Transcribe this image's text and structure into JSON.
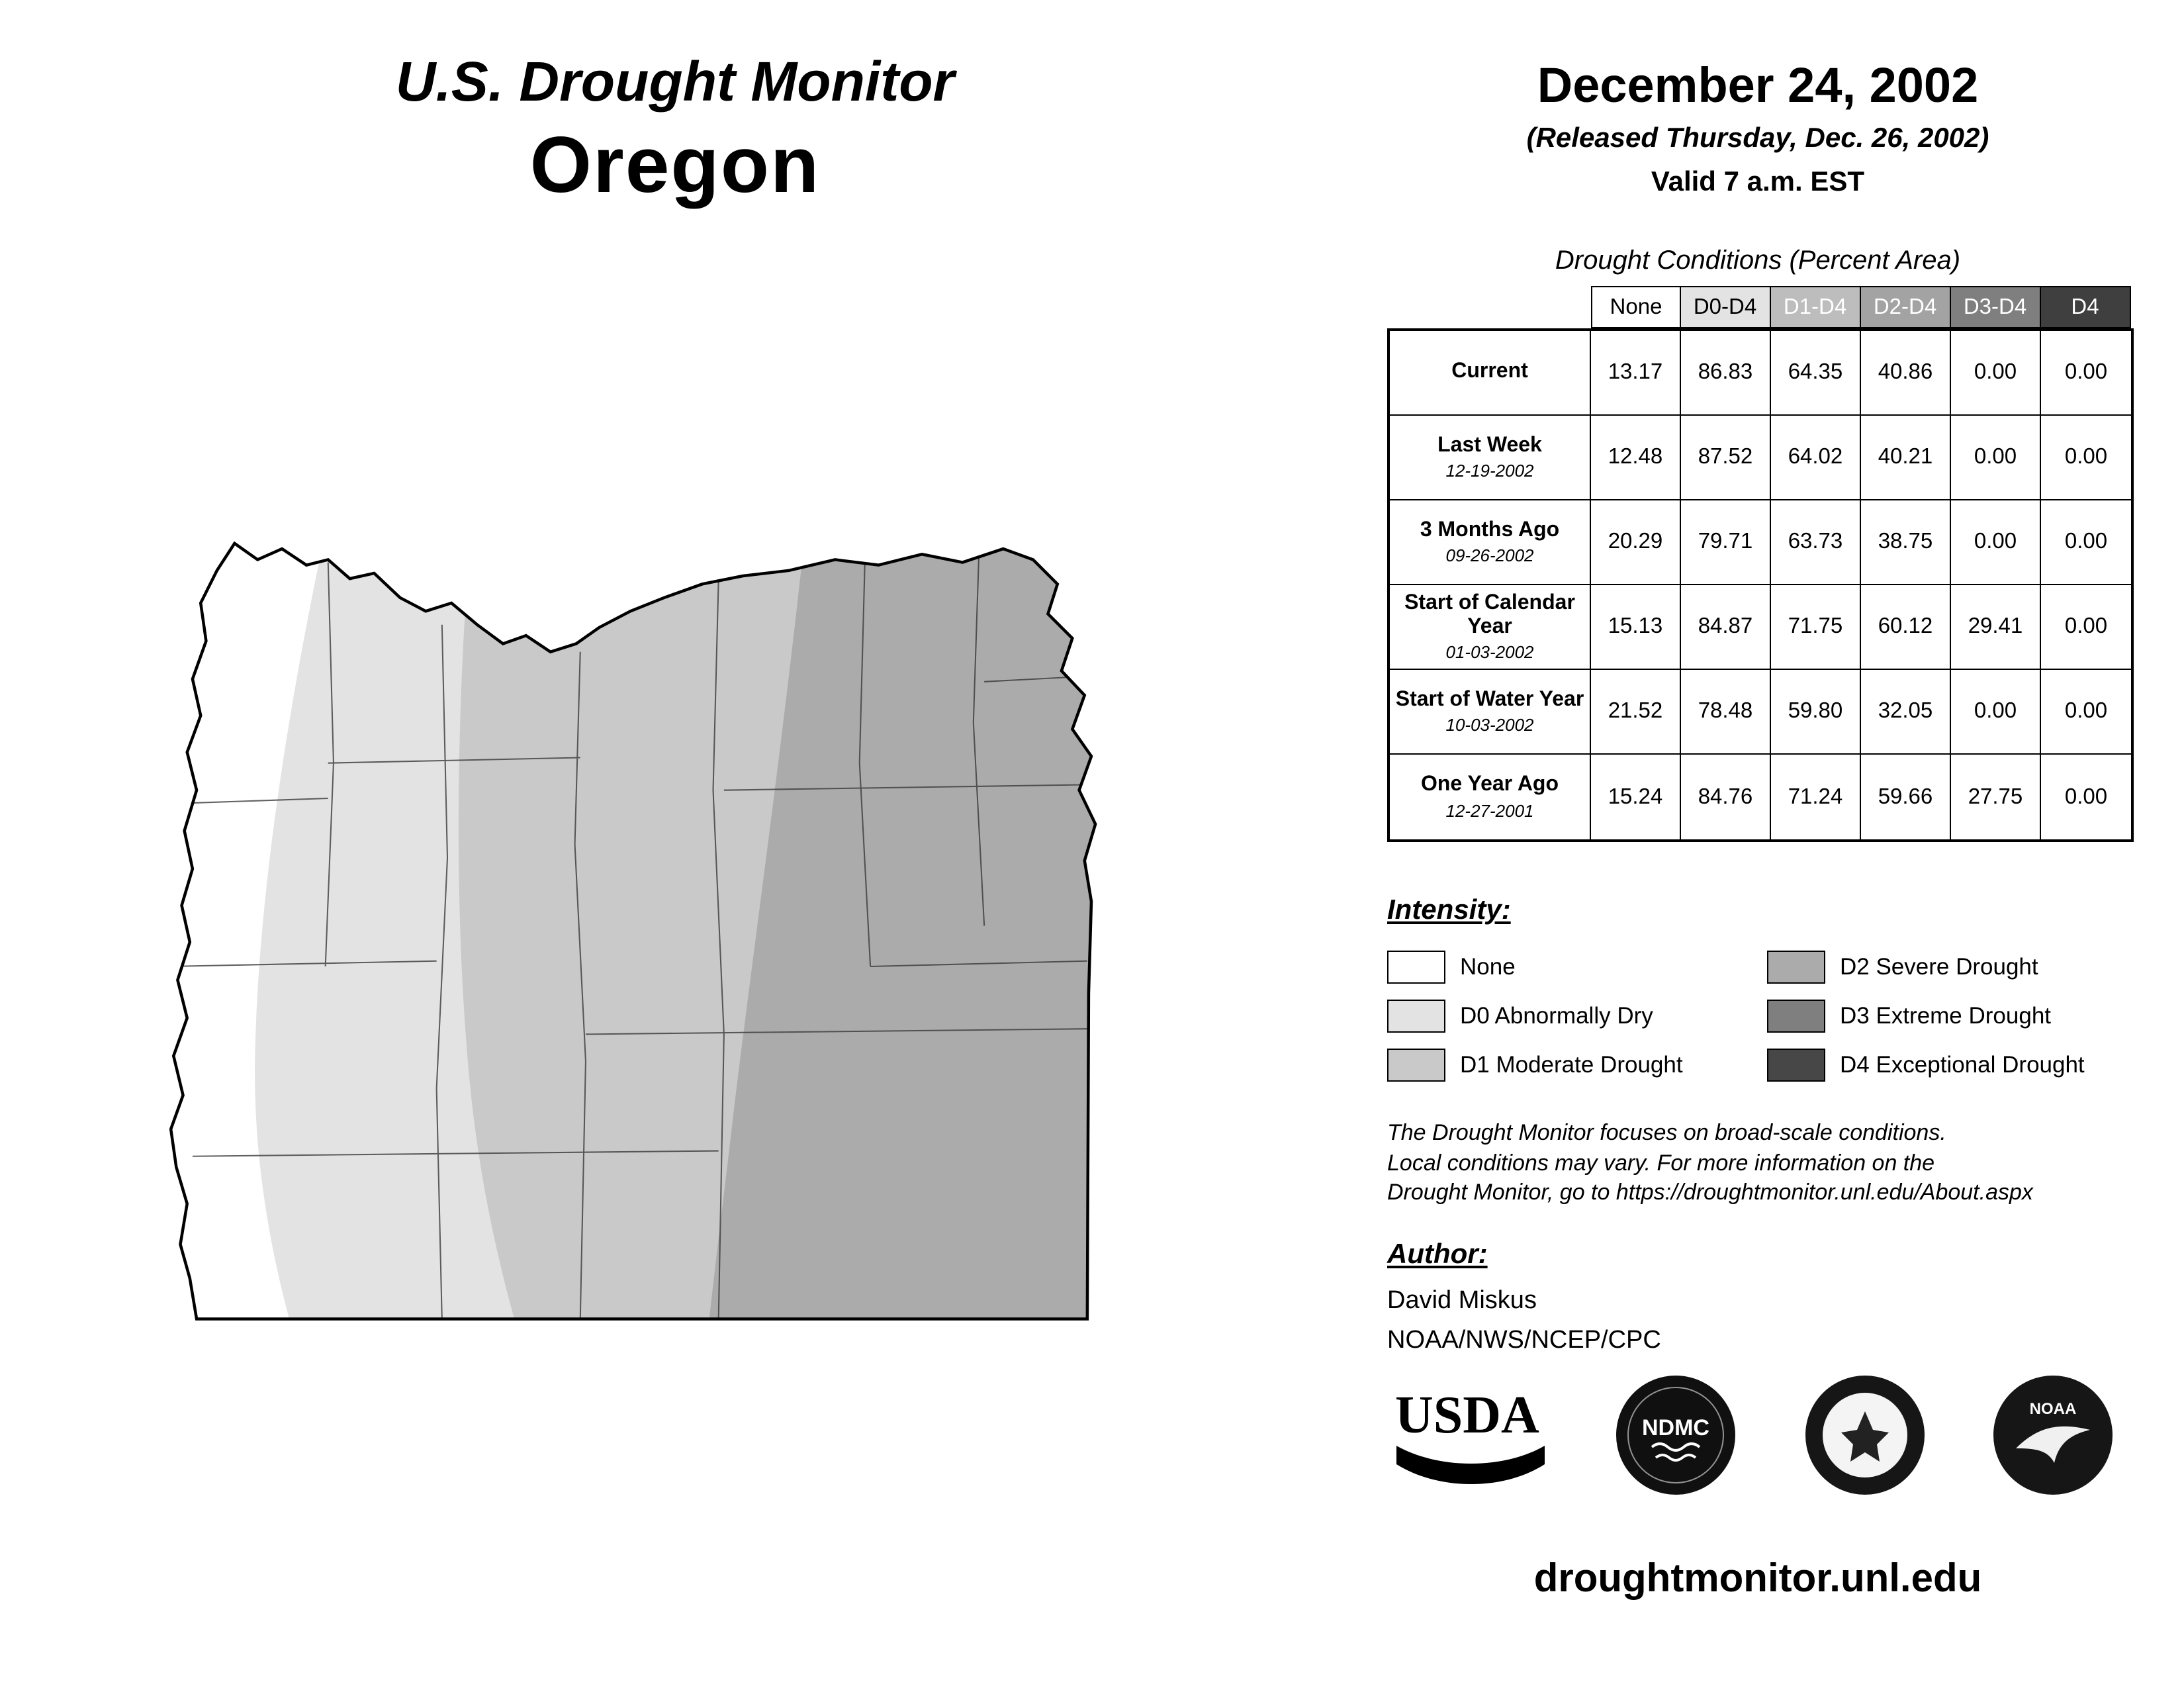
{
  "header": {
    "title": "U.S. Drought Monitor",
    "state": "Oregon",
    "date": "December 24, 2002",
    "released": "(Released Thursday, Dec. 26, 2002)",
    "valid": "Valid 7 a.m. EST"
  },
  "table": {
    "title": "Drought Conditions (Percent Area)",
    "columns": [
      {
        "label": "None",
        "bg": "#FFFFFF",
        "fg": "#000000"
      },
      {
        "label": "D0-D4",
        "bg": "#E3E3E3",
        "fg": "#000000"
      },
      {
        "label": "D1-D4",
        "bg": "#BDBDBD",
        "fg": "#FFFFFF"
      },
      {
        "label": "D2-D4",
        "bg": "#A3A3A3",
        "fg": "#FFFFFF"
      },
      {
        "label": "D3-D4",
        "bg": "#7F7F7F",
        "fg": "#FFFFFF"
      },
      {
        "label": "D4",
        "bg": "#3F3F3F",
        "fg": "#FFFFFF"
      }
    ],
    "rows": [
      {
        "label": "Current",
        "date": "",
        "values": [
          "13.17",
          "86.83",
          "64.35",
          "40.86",
          "0.00",
          "0.00"
        ]
      },
      {
        "label": "Last Week",
        "date": "12-19-2002",
        "values": [
          "12.48",
          "87.52",
          "64.02",
          "40.21",
          "0.00",
          "0.00"
        ]
      },
      {
        "label": "3 Months Ago",
        "date": "09-26-2002",
        "values": [
          "20.29",
          "79.71",
          "63.73",
          "38.75",
          "0.00",
          "0.00"
        ]
      },
      {
        "label": "Start of Calendar Year",
        "date": "01-03-2002",
        "values": [
          "15.13",
          "84.87",
          "71.75",
          "60.12",
          "29.41",
          "0.00"
        ]
      },
      {
        "label": "Start of Water Year",
        "date": "10-03-2002",
        "values": [
          "21.52",
          "78.48",
          "59.80",
          "32.05",
          "0.00",
          "0.00"
        ]
      },
      {
        "label": "One Year Ago",
        "date": "12-27-2001",
        "values": [
          "15.24",
          "84.76",
          "71.24",
          "59.66",
          "27.75",
          "0.00"
        ]
      }
    ]
  },
  "legend": {
    "title": "Intensity:",
    "items": [
      {
        "label": "None",
        "color": "#FFFFFF"
      },
      {
        "label": "D0 Abnormally Dry",
        "color": "#E3E3E3"
      },
      {
        "label": "D1 Moderate Drought",
        "color": "#C9C9C9"
      },
      {
        "label": "D2 Severe Drought",
        "color": "#ABABAB"
      },
      {
        "label": "D3 Extreme Drought",
        "color": "#7F7F7F"
      },
      {
        "label": "D4 Exceptional Drought",
        "color": "#474747"
      }
    ]
  },
  "disclaimer": [
    "The Drought Monitor focuses on broad-scale conditions.",
    "Local conditions may vary. For more information on the",
    "Drought Monitor, go to https://droughtmonitor.unl.edu/About.aspx"
  ],
  "author": {
    "heading": "Author:",
    "name": "David Miskus",
    "org": "NOAA/NWS/NCEP/CPC"
  },
  "logos": {
    "usda": "USDA",
    "ndmc": "NDMC",
    "doc": "DEPARTMENT OF COMMERCE",
    "noaa": "NOAA"
  },
  "footer": {
    "url": "droughtmonitor.unl.edu"
  },
  "map": {
    "region": "Oregon",
    "fills": {
      "none": "#FFFFFF",
      "d0": "#E3E3E3",
      "d1": "#C9C9C9",
      "d2": "#ABABAB"
    }
  }
}
